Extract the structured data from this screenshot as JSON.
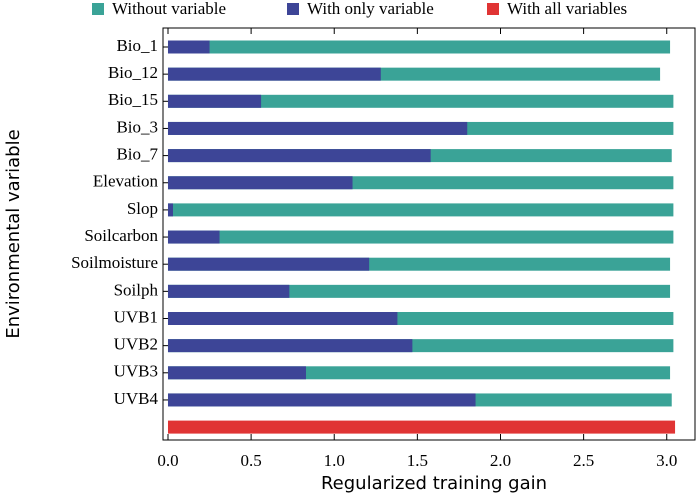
{
  "chart_data": {
    "type": "bar",
    "orientation": "horizontal",
    "overlay": true,
    "categories": [
      "Bio_1",
      "Bio_12",
      "Bio_15",
      "Bio_3",
      "Bio_7",
      "Elevation",
      "Slop",
      "Soilcarbon",
      "Soilmoisture",
      "Soilph",
      "UVB1",
      "UVB2",
      "UVB3",
      "UVB4",
      null
    ],
    "series": [
      {
        "name": "Without variable",
        "color": "#3aa397",
        "values": [
          3.02,
          2.96,
          3.04,
          3.04,
          3.03,
          3.04,
          3.04,
          3.04,
          3.02,
          3.02,
          3.04,
          3.04,
          3.02,
          3.03,
          null
        ]
      },
      {
        "name": "With only variable",
        "color": "#3d4597",
        "values": [
          0.25,
          1.28,
          0.56,
          1.8,
          1.58,
          1.11,
          0.03,
          0.31,
          1.21,
          0.73,
          1.38,
          1.47,
          0.83,
          1.85,
          null
        ]
      },
      {
        "name": "With all variables",
        "color": "#e03434",
        "values": [
          null,
          null,
          null,
          null,
          null,
          null,
          null,
          null,
          null,
          null,
          null,
          null,
          null,
          null,
          3.05
        ]
      }
    ],
    "xlabel": "Regularized training gain",
    "ylabel": "Environmental variable",
    "xlim": [
      -0.03,
      3.17
    ],
    "xticks": [
      {
        "value": 0,
        "label": "0.0"
      },
      0.5,
      {
        "value": 1,
        "label": "1.0"
      },
      1.5,
      {
        "value": 2,
        "label": "2.0"
      },
      2.5,
      {
        "value": 3,
        "label": "3.0"
      }
    ],
    "legend": "top"
  }
}
